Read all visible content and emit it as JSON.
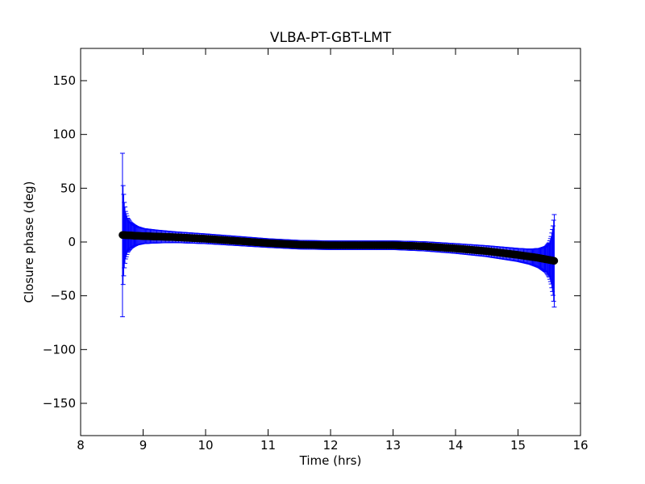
{
  "chart_data": {
    "type": "scatter",
    "title": "VLBA-PT-GBT-LMT",
    "xlabel": "Time (hrs)",
    "ylabel": "Closure phase (deg)",
    "xlim": [
      8,
      16
    ],
    "ylim": [
      -180,
      180
    ],
    "xticks": [
      8,
      9,
      10,
      11,
      12,
      13,
      14,
      15,
      16
    ],
    "xtick_labels": [
      "8",
      "9",
      "10",
      "11",
      "12",
      "13",
      "14",
      "15",
      "16"
    ],
    "yticks": [
      -150,
      -100,
      -50,
      0,
      50,
      100,
      150
    ],
    "ytick_labels": [
      "−150",
      "−100",
      "−50",
      "0",
      "50",
      "100",
      "150"
    ],
    "grid": false,
    "legend": "none",
    "colors": {
      "marker": "#000000",
      "errorbar": "#0000ff"
    },
    "series": [
      {
        "marker": "circle",
        "x_range": [
          8.67,
          15.58
        ],
        "y_profile": {
          "x": [
            8.67,
            9.0,
            9.5,
            10.0,
            10.5,
            11.0,
            11.5,
            12.0,
            12.5,
            13.0,
            13.5,
            14.0,
            14.5,
            15.0,
            15.3,
            15.58
          ],
          "y": [
            6.5,
            5.5,
            4.5,
            3.0,
            1.0,
            -1.0,
            -2.5,
            -3.0,
            -3.0,
            -3.0,
            -4.0,
            -6.0,
            -8.5,
            -12.0,
            -14.5,
            -17.5
          ]
        },
        "error_profile": {
          "x": [
            8.67,
            8.68,
            8.7,
            8.72,
            8.75,
            8.8,
            8.85,
            8.9,
            9.0,
            9.2,
            9.5,
            10.0,
            11.0,
            12.0,
            13.0,
            14.0,
            14.5,
            15.0,
            15.2,
            15.35,
            15.45,
            15.5,
            15.53,
            15.56,
            15.58
          ],
          "err": [
            76,
            45,
            30,
            22,
            16,
            12,
            10,
            8.5,
            7,
            6,
            5,
            4.5,
            4,
            4,
            4,
            4.5,
            5,
            6,
            7,
            9,
            12,
            16,
            22,
            32,
            43
          ]
        }
      }
    ]
  }
}
